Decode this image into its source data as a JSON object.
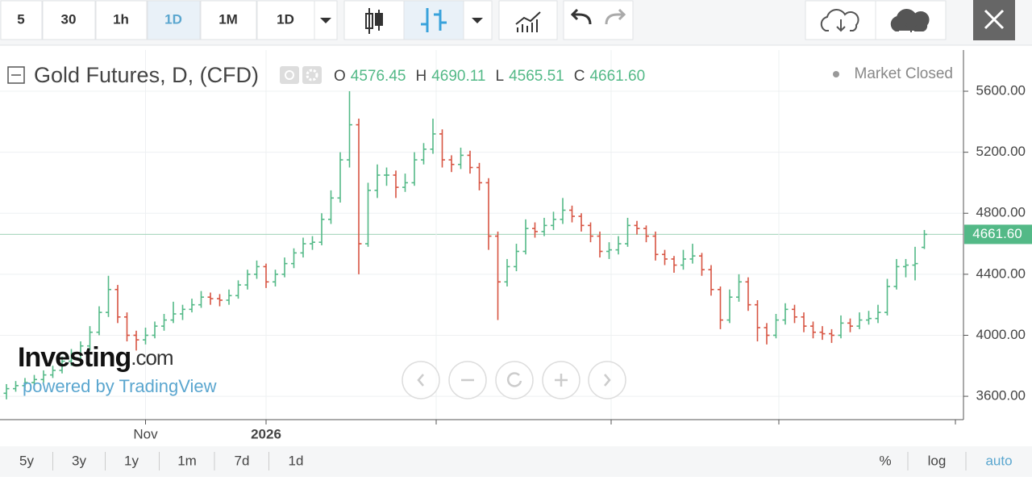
{
  "toolbar": {
    "intervals": [
      "5",
      "30",
      "1h",
      "1D",
      "1M",
      "1D"
    ]
  },
  "chart_data": {
    "type": "ohlc",
    "title": "Gold Futures, D, (CFD)",
    "status": "Market Closed",
    "legend": [
      {
        "label": "O",
        "value": "4576.45"
      },
      {
        "label": "H",
        "value": "4690.11"
      },
      {
        "label": "L",
        "value": "4565.51"
      },
      {
        "label": "C",
        "value": "4661.60"
      }
    ],
    "up_color": "#53b987",
    "down_color": "#d75442",
    "grid": true,
    "ylim": [
      3447,
      5870
    ],
    "yticks": [
      {
        "value": 3600,
        "label": "3600.00"
      },
      {
        "value": 4000,
        "label": "4000.00"
      },
      {
        "value": 4400,
        "label": "4400.00"
      },
      {
        "value": 4800,
        "label": "4800.00"
      },
      {
        "value": 5200,
        "label": "5200.00"
      },
      {
        "value": 5600,
        "label": "5600.00"
      }
    ],
    "last_price": {
      "value": 4661.6,
      "label": "4661.60"
    },
    "categories": [
      null,
      null,
      null,
      null,
      null,
      null,
      null,
      null,
      null,
      null,
      null,
      null,
      null,
      null,
      null,
      "Nov",
      null,
      null,
      null,
      null,
      null,
      null,
      null,
      null,
      null,
      null,
      null,
      null,
      "2026",
      null,
      null,
      null,
      null,
      null,
      null,
      null,
      null,
      null,
      null,
      null,
      null,
      null,
      null,
      null,
      null,
      null,
      null,
      null,
      null,
      null,
      null,
      null,
      null,
      null,
      null,
      null,
      null,
      null,
      null,
      null,
      null,
      null,
      null,
      null,
      null,
      null,
      null,
      null,
      null,
      null,
      null,
      null,
      null,
      null,
      null,
      null,
      null,
      null,
      null,
      null,
      null,
      null,
      null,
      null,
      null,
      null,
      null,
      null,
      null,
      null,
      null,
      null,
      null,
      null,
      null,
      null,
      null,
      null,
      null,
      null
    ],
    "ohlc": [
      [
        3620,
        3680,
        3580,
        3650
      ],
      [
        3650,
        3700,
        3630,
        3670
      ],
      [
        3670,
        3720,
        3650,
        3690
      ],
      [
        3690,
        3740,
        3670,
        3710
      ],
      [
        3710,
        3770,
        3690,
        3740
      ],
      [
        3740,
        3800,
        3720,
        3770
      ],
      [
        3770,
        3860,
        3750,
        3830
      ],
      [
        3830,
        3910,
        3800,
        3880
      ],
      [
        3880,
        3960,
        3850,
        3930
      ],
      [
        3930,
        4060,
        3900,
        4020
      ],
      [
        4020,
        4190,
        4000,
        4150
      ],
      [
        4150,
        4390,
        4120,
        4300
      ],
      [
        4300,
        4330,
        4080,
        4120
      ],
      [
        4120,
        4150,
        3960,
        4000
      ],
      [
        4000,
        4030,
        3900,
        3970
      ],
      [
        3970,
        4050,
        3940,
        4000
      ],
      [
        4000,
        4090,
        3980,
        4060
      ],
      [
        4060,
        4140,
        4030,
        4100
      ],
      [
        4100,
        4220,
        4080,
        4140
      ],
      [
        4140,
        4200,
        4100,
        4170
      ],
      [
        4170,
        4240,
        4150,
        4200
      ],
      [
        4200,
        4290,
        4180,
        4250
      ],
      [
        4250,
        4280,
        4200,
        4240
      ],
      [
        4240,
        4270,
        4190,
        4230
      ],
      [
        4230,
        4300,
        4200,
        4260
      ],
      [
        4260,
        4360,
        4240,
        4330
      ],
      [
        4330,
        4430,
        4300,
        4400
      ],
      [
        4400,
        4490,
        4370,
        4450
      ],
      [
        4450,
        4470,
        4310,
        4350
      ],
      [
        4350,
        4430,
        4320,
        4400
      ],
      [
        4400,
        4510,
        4380,
        4470
      ],
      [
        4470,
        4570,
        4440,
        4540
      ],
      [
        4540,
        4640,
        4510,
        4600
      ],
      [
        4600,
        4650,
        4560,
        4610
      ],
      [
        4610,
        4800,
        4590,
        4760
      ],
      [
        4760,
        4950,
        4730,
        4900
      ],
      [
        4900,
        5200,
        4870,
        5150
      ],
      [
        5150,
        5600,
        5100,
        5380
      ],
      [
        5380,
        5420,
        4400,
        4600
      ],
      [
        4600,
        5000,
        4580,
        4950
      ],
      [
        4950,
        5120,
        4900,
        5050
      ],
      [
        5050,
        5100,
        4980,
        5050
      ],
      [
        5050,
        5080,
        4900,
        4970
      ],
      [
        4970,
        5060,
        4940,
        5000
      ],
      [
        5000,
        5200,
        4980,
        5150
      ],
      [
        5150,
        5260,
        5120,
        5220
      ],
      [
        5220,
        5420,
        5190,
        5320
      ],
      [
        5320,
        5350,
        5100,
        5150
      ],
      [
        5150,
        5180,
        5070,
        5120
      ],
      [
        5120,
        5230,
        5090,
        5180
      ],
      [
        5180,
        5210,
        5060,
        5100
      ],
      [
        5100,
        5130,
        4950,
        5000
      ],
      [
        5000,
        5030,
        4560,
        4650
      ],
      [
        4650,
        4680,
        4100,
        4350
      ],
      [
        4350,
        4500,
        4320,
        4450
      ],
      [
        4450,
        4600,
        4420,
        4550
      ],
      [
        4550,
        4760,
        4530,
        4700
      ],
      [
        4700,
        4740,
        4640,
        4680
      ],
      [
        4680,
        4770,
        4650,
        4720
      ],
      [
        4720,
        4810,
        4690,
        4760
      ],
      [
        4760,
        4900,
        4730,
        4820
      ],
      [
        4820,
        4850,
        4740,
        4780
      ],
      [
        4780,
        4800,
        4680,
        4720
      ],
      [
        4720,
        4740,
        4610,
        4650
      ],
      [
        4650,
        4680,
        4510,
        4550
      ],
      [
        4550,
        4610,
        4500,
        4560
      ],
      [
        4560,
        4650,
        4530,
        4600
      ],
      [
        4600,
        4770,
        4580,
        4720
      ],
      [
        4720,
        4750,
        4660,
        4700
      ],
      [
        4700,
        4720,
        4610,
        4650
      ],
      [
        4650,
        4680,
        4490,
        4530
      ],
      [
        4530,
        4560,
        4460,
        4500
      ],
      [
        4500,
        4520,
        4410,
        4460
      ],
      [
        4460,
        4560,
        4430,
        4500
      ],
      [
        4500,
        4600,
        4470,
        4520
      ],
      [
        4520,
        4540,
        4390,
        4430
      ],
      [
        4430,
        4460,
        4260,
        4300
      ],
      [
        4300,
        4320,
        4040,
        4100
      ],
      [
        4100,
        4300,
        4080,
        4250
      ],
      [
        4250,
        4400,
        4220,
        4350
      ],
      [
        4350,
        4380,
        4160,
        4200
      ],
      [
        4200,
        4230,
        3960,
        4050
      ],
      [
        4050,
        4080,
        3940,
        4000
      ],
      [
        4000,
        4140,
        3980,
        4100
      ],
      [
        4100,
        4210,
        4070,
        4170
      ],
      [
        4170,
        4200,
        4080,
        4120
      ],
      [
        4120,
        4150,
        4020,
        4060
      ],
      [
        4060,
        4090,
        3980,
        4020
      ],
      [
        4020,
        4060,
        3970,
        4010
      ],
      [
        4010,
        4040,
        3950,
        4000
      ],
      [
        4000,
        4130,
        3980,
        4080
      ],
      [
        4080,
        4110,
        4020,
        4060
      ],
      [
        4060,
        4150,
        4040,
        4100
      ],
      [
        4100,
        4160,
        4070,
        4110
      ],
      [
        4110,
        4200,
        4080,
        4150
      ],
      [
        4150,
        4370,
        4130,
        4320
      ],
      [
        4320,
        4500,
        4300,
        4450
      ],
      [
        4450,
        4500,
        4380,
        4460
      ],
      [
        4460,
        4580,
        4360,
        4470
      ],
      [
        4576.45,
        4690.11,
        4565.51,
        4661.6
      ]
    ]
  },
  "watermark": {
    "brand": "Investing",
    "domain": ".com",
    "powered": "powered by TradingView"
  },
  "footer": {
    "ranges": [
      "5y",
      "3y",
      "1y",
      "1m",
      "7d",
      "1d"
    ],
    "percent": "%",
    "log": "log",
    "auto": "auto"
  }
}
